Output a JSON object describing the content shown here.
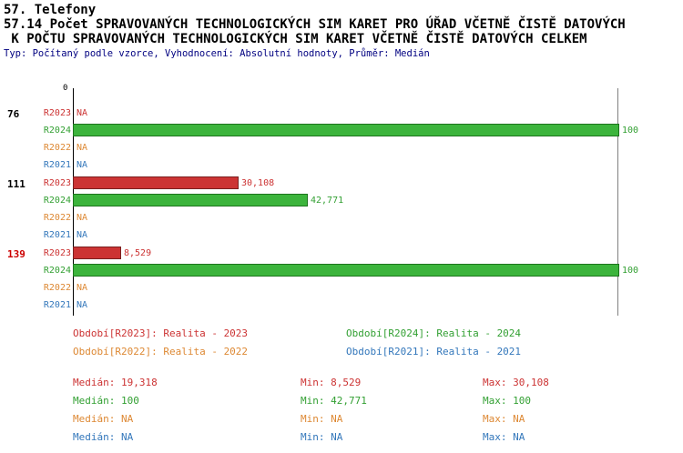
{
  "header": {
    "section": "57. Telefony",
    "title_line1": "57.14 Počet SPRAVOVANÝCH TECHNOLOGICKÝCH SIM KARET PRO ÚŘAD VČETNĚ ČISTĚ DATOVÝCH",
    "title_line2": " K POČTU SPRAVOVANÝCH TECHNOLOGICKÝCH SIM KARET VČETNĚ ČISTĚ DATOVÝCH CELKEM",
    "meta": "Typ: Počítaný podle vzorce, Vyhodnocení: Absolutní hodnoty, Průměr: Medián"
  },
  "chart_data": {
    "type": "bar",
    "orientation": "horizontal",
    "axis_origin_label": "0",
    "xlim": [
      0,
      100
    ],
    "grid": false,
    "series_order": [
      "R2023",
      "R2024",
      "R2022",
      "R2021"
    ],
    "series_colors": {
      "R2023": {
        "text": "#cc3333",
        "fill": "#cc3333",
        "border": "#7a1f1f"
      },
      "R2024": {
        "text": "#33a033",
        "fill": "#3cb43c",
        "border": "#1d741d"
      },
      "R2022": {
        "text": "#dd8833",
        "fill": "#dd8833",
        "border": "#9a5a12"
      },
      "R2021": {
        "text": "#3377bb",
        "fill": "#3377bb",
        "border": "#1f4d80"
      }
    },
    "groups": [
      {
        "label": "76",
        "label_color": "#000000",
        "bars": [
          {
            "series": "R2023",
            "value": null,
            "display": "NA"
          },
          {
            "series": "R2024",
            "value": 100,
            "display": "100"
          },
          {
            "series": "R2022",
            "value": null,
            "display": "NA"
          },
          {
            "series": "R2021",
            "value": null,
            "display": "NA"
          }
        ]
      },
      {
        "label": "111",
        "label_color": "#000000",
        "bars": [
          {
            "series": "R2023",
            "value": 30.108,
            "display": "30,108"
          },
          {
            "series": "R2024",
            "value": 42.771,
            "display": "42,771"
          },
          {
            "series": "R2022",
            "value": null,
            "display": "NA"
          },
          {
            "series": "R2021",
            "value": null,
            "display": "NA"
          }
        ]
      },
      {
        "label": "139",
        "label_color": "#cc0000",
        "bars": [
          {
            "series": "R2023",
            "value": 8.529,
            "display": "8,529"
          },
          {
            "series": "R2024",
            "value": 100,
            "display": "100"
          },
          {
            "series": "R2022",
            "value": null,
            "display": "NA"
          },
          {
            "series": "R2021",
            "value": null,
            "display": "NA"
          }
        ]
      }
    ],
    "legend": [
      {
        "series": "R2023",
        "text": "Období[R2023]: Realita - 2023"
      },
      {
        "series": "R2024",
        "text": "Období[R2024]: Realita - 2024"
      },
      {
        "series": "R2022",
        "text": "Období[R2022]: Realita - 2022"
      },
      {
        "series": "R2021",
        "text": "Období[R2021]: Realita - 2021"
      }
    ],
    "stats_labels": {
      "median": "Medián",
      "min": "Min",
      "max": "Max"
    },
    "stats": [
      {
        "series": "R2023",
        "median": "19,318",
        "min": "8,529",
        "max": "30,108"
      },
      {
        "series": "R2024",
        "median": "100",
        "min": "42,771",
        "max": "100"
      },
      {
        "series": "R2022",
        "median": "NA",
        "min": "NA",
        "max": "NA"
      },
      {
        "series": "R2021",
        "median": "NA",
        "min": "NA",
        "max": "NA"
      }
    ]
  }
}
